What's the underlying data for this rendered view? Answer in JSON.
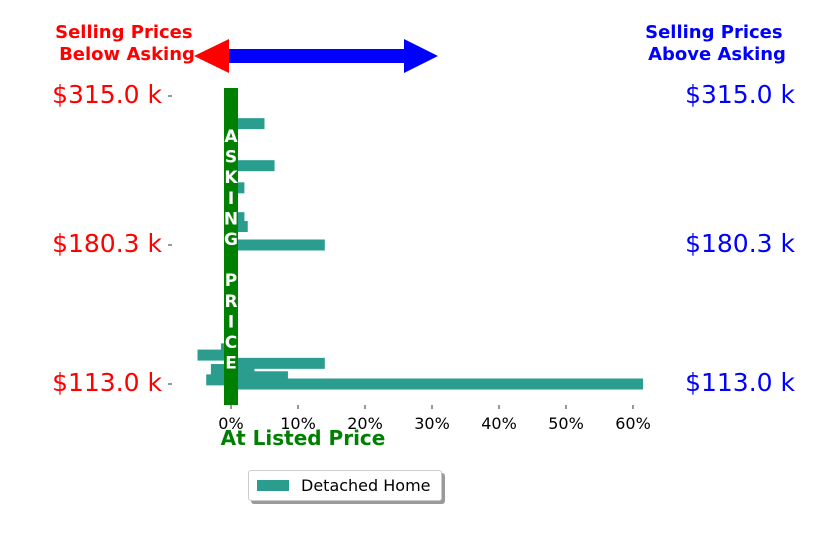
{
  "chart_data": {
    "type": "bar",
    "orientation": "horizontal",
    "series": [
      {
        "name": "Detached Home",
        "color": "#2a9d8f",
        "points": [
          {
            "y": 113.0,
            "value": 61.5
          },
          {
            "y": 115.0,
            "value": -3.7
          },
          {
            "y": 116.5,
            "value": 8.5
          },
          {
            "y": 118.0,
            "value": 3.5
          },
          {
            "y": 120.0,
            "value": -3.0
          },
          {
            "y": 123.0,
            "value": 14.0
          },
          {
            "y": 127.0,
            "value": -5.0
          },
          {
            "y": 130.0,
            "value": -1.5
          },
          {
            "y": 135.0,
            "value": 0.5
          },
          {
            "y": 155.0,
            "value": 0.5
          },
          {
            "y": 180.3,
            "value": 14.0
          },
          {
            "y": 197.0,
            "value": 2.5
          },
          {
            "y": 205.0,
            "value": 2.0
          },
          {
            "y": 220.0,
            "value": 1.0
          },
          {
            "y": 232.0,
            "value": 2.0
          },
          {
            "y": 252.0,
            "value": 6.5
          },
          {
            "y": 290.0,
            "value": 5.0
          },
          {
            "y": 305.0,
            "value": 1.0
          },
          {
            "y": 315.0,
            "value": 1.0
          }
        ]
      }
    ],
    "xlim": [
      -5.5,
      62
    ],
    "x_ticks": [
      {
        "value": 0,
        "label": "0%"
      },
      {
        "value": 10,
        "label": "10%"
      },
      {
        "value": 20,
        "label": "20%"
      },
      {
        "value": 30,
        "label": "30%"
      },
      {
        "value": 40,
        "label": "40%"
      },
      {
        "value": 50,
        "label": "50%"
      },
      {
        "value": 60,
        "label": "60%"
      }
    ],
    "y_ticks": [
      {
        "value": 113.0,
        "label": "$113.0 k"
      },
      {
        "value": 180.3,
        "label": "$180.3 k"
      },
      {
        "value": 315.0,
        "label": "$315.0 k"
      }
    ],
    "xlabel": "At Listed Price",
    "vertical_label_letters": [
      "A",
      "S",
      "K",
      "I",
      "N",
      "G",
      "",
      "P",
      "R",
      "I",
      "C",
      "E"
    ],
    "annotations": {
      "left_text": [
        "Selling Prices",
        "Below Asking"
      ],
      "right_text": [
        "Selling Prices",
        "Above Asking"
      ]
    },
    "colors": {
      "below": "#ff0000",
      "above": "#0000ff",
      "asking": "#008000",
      "letter": "#ffffff"
    },
    "legend": {
      "placement": "bottom-center",
      "label": "Detached Home"
    }
  }
}
